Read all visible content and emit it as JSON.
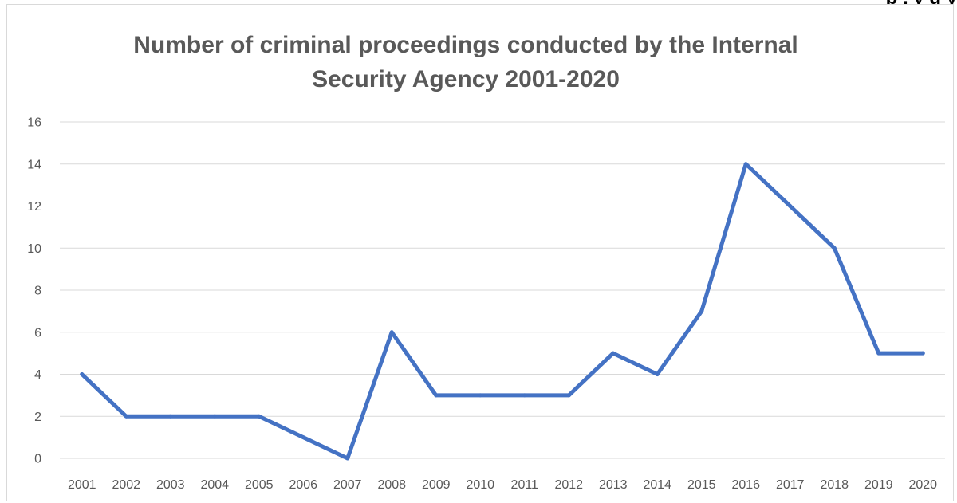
{
  "page": {
    "cropped_heading": "p                                                      ,                                  y  g    y"
  },
  "chart_data": {
    "type": "line",
    "title_lines": [
      "Number of criminal proceedings conducted by the Internal",
      "Security Agency 2001-2020"
    ],
    "xlabel": "",
    "ylabel": "",
    "categories": [
      "2001",
      "2002",
      "2003",
      "2004",
      "2005",
      "2006",
      "2007",
      "2008",
      "2009",
      "2010",
      "2011",
      "2012",
      "2013",
      "2014",
      "2015",
      "2016",
      "2017",
      "2018",
      "2019",
      "2020"
    ],
    "series": [
      {
        "values": [
          4,
          2,
          2,
          2,
          2,
          1,
          0,
          6,
          3,
          3,
          3,
          3,
          5,
          4,
          7,
          14,
          12,
          10,
          5,
          5
        ],
        "color": "#4472c4"
      }
    ],
    "ylim": [
      0,
      16
    ],
    "yticks": [
      0,
      2,
      4,
      6,
      8,
      10,
      12,
      14,
      16
    ],
    "grid": true,
    "legend": "none"
  }
}
